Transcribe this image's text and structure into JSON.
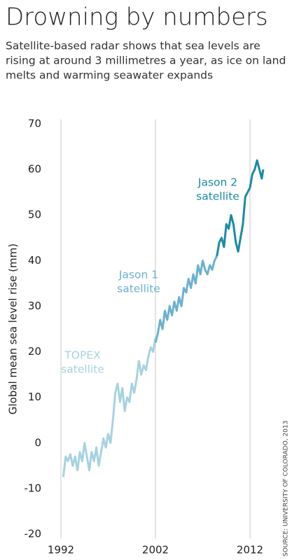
{
  "chart_data": {
    "type": "line",
    "title": "Drowning by numbers",
    "subtitle": [
      "Satellite-based radar shows that sea levels are",
      "rising at around 3 millimetres a year, as ice on land",
      "melts and warming seawater expands"
    ],
    "y_label": "Global mean sea level rise (mm)",
    "source": "SOURCE: UNIVERSITY OF COLORADO, 2013",
    "xlim": [
      1990.4,
      2014.1
    ],
    "ylim": [
      -21,
      71
    ],
    "xticks": [
      1992,
      2002,
      2012
    ],
    "yticks": [
      -20,
      -10,
      0,
      10,
      20,
      30,
      40,
      50,
      60,
      70
    ],
    "grid": "x",
    "series": [
      {
        "name": [
          "TOPEX",
          "satellite"
        ],
        "color": "#a6d2e1",
        "x": [
          1992.25,
          1992.5,
          1992.75,
          1993.0,
          1993.25,
          1993.5,
          1993.75,
          1994.0,
          1994.25,
          1994.5,
          1994.75,
          1995.0,
          1995.25,
          1995.5,
          1995.75,
          1996.0,
          1996.25,
          1996.5,
          1996.75,
          1997.0,
          1997.25,
          1997.5,
          1997.75,
          1998.0,
          1998.25,
          1998.5,
          1998.75,
          1999.0,
          1999.25,
          1999.5,
          1999.75,
          2000.0,
          2000.25,
          2000.5,
          2000.75,
          2001.0,
          2001.25,
          2001.5,
          2001.75,
          2002.0
        ],
        "values": [
          -7.5,
          -3,
          -4,
          -2.5,
          -5,
          -3,
          -6,
          -2,
          -4,
          0,
          -3,
          -6,
          -2,
          -4,
          -1,
          -5,
          -2,
          1,
          -1,
          2,
          0,
          5,
          11,
          13,
          9,
          12,
          7,
          10,
          9,
          13,
          11,
          14,
          18,
          15,
          17,
          16,
          19,
          21,
          20,
          23
        ]
      },
      {
        "name": [
          "Jason 1",
          "satellite"
        ],
        "color": "#6bb1cf",
        "x": [
          2002.0,
          2002.25,
          2002.5,
          2002.75,
          2003.0,
          2003.25,
          2003.5,
          2003.75,
          2004.0,
          2004.25,
          2004.5,
          2004.75,
          2005.0,
          2005.25,
          2005.5,
          2005.75,
          2006.0,
          2006.25,
          2006.5,
          2006.75,
          2007.0,
          2007.25,
          2007.5,
          2007.75,
          2008.0,
          2008.25,
          2008.5
        ],
        "values": [
          22,
          24,
          27,
          25,
          29,
          27,
          30,
          28,
          31,
          29,
          32,
          30,
          34,
          33,
          36,
          34,
          37,
          35,
          39,
          37,
          40,
          38,
          37,
          39,
          38,
          40,
          41
        ]
      },
      {
        "name": [
          "Jason 2",
          "satellite"
        ],
        "color": "#1a8aa6",
        "x": [
          2008.5,
          2008.75,
          2009.0,
          2009.25,
          2009.5,
          2009.75,
          2010.0,
          2010.25,
          2010.5,
          2010.75,
          2011.0,
          2011.25,
          2011.5,
          2011.75,
          2012.0,
          2012.25,
          2012.5,
          2012.75,
          2013.0,
          2013.25,
          2013.4
        ],
        "values": [
          41,
          44,
          45,
          43,
          48,
          47,
          50,
          48,
          44,
          42,
          45,
          48,
          54,
          55,
          56,
          59,
          60,
          62,
          60,
          58,
          60
        ]
      }
    ]
  }
}
